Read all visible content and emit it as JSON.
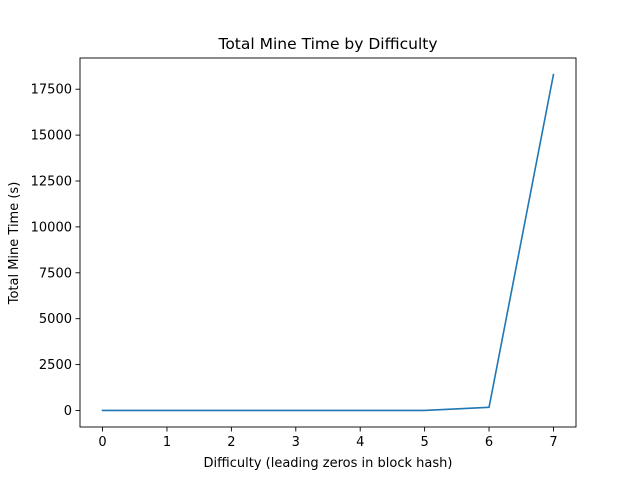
{
  "chart_data": {
    "type": "line",
    "title": "Total Mine Time by Difficulty",
    "xlabel": "Difficulty (leading zeros in block hash)",
    "ylabel": "Total Mine Time (s)",
    "xlim": [
      -0.35,
      7.35
    ],
    "ylim": [
      -900,
      19200
    ],
    "x_ticks": [
      0,
      1,
      2,
      3,
      4,
      5,
      6,
      7
    ],
    "y_ticks": [
      0,
      2500,
      5000,
      7500,
      10000,
      12500,
      15000,
      17500
    ],
    "grid": false,
    "legend": "none",
    "series": [
      {
        "color": "#1f77b4",
        "x": [
          0,
          1,
          2,
          3,
          4,
          5,
          6,
          7
        ],
        "y": [
          0,
          0,
          0,
          0,
          1,
          5,
          170,
          18300
        ]
      }
    ]
  }
}
